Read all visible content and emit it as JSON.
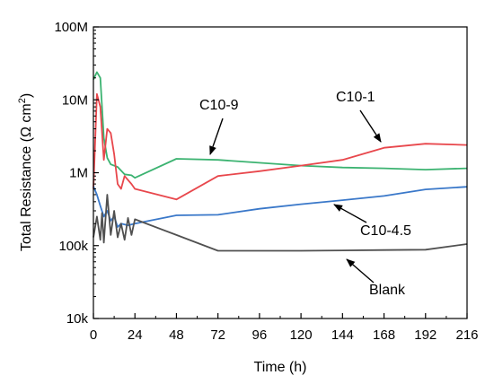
{
  "chart_data": {
    "type": "line",
    "x_axis": {
      "label": "Time (h)",
      "range": [
        0,
        216
      ],
      "ticks": [
        0,
        24,
        48,
        72,
        96,
        120,
        144,
        168,
        192,
        216
      ],
      "tick_labels": [
        "0",
        "24",
        "48",
        "72",
        "96",
        "120",
        "144",
        "168",
        "192",
        "216"
      ]
    },
    "y_axis": {
      "label": "Total Resistance (Ω cm²)",
      "label_main": "Total Resistance (Ω cm",
      "label_sup": "2",
      "label_end": ")",
      "scale": "log",
      "range": [
        10000,
        100000000
      ],
      "ticks": [
        10000,
        100000,
        1000000,
        10000000,
        100000000
      ],
      "tick_labels": [
        "10k",
        "100k",
        "1M",
        "10M",
        "100M"
      ]
    },
    "grid": false,
    "legend": "none (inline annotations with arrows)",
    "series": [
      {
        "name": "C10-9",
        "color": "#3cb371",
        "points": [
          [
            0,
            19000000
          ],
          [
            2,
            24000000
          ],
          [
            4,
            20000000
          ],
          [
            6,
            3000000
          ],
          [
            8,
            1600000
          ],
          [
            10,
            1300000
          ],
          [
            14,
            1200000
          ],
          [
            18,
            950000
          ],
          [
            22,
            920000
          ],
          [
            24,
            850000
          ],
          [
            48,
            1550000
          ],
          [
            72,
            1500000
          ],
          [
            120,
            1250000
          ],
          [
            144,
            1180000
          ],
          [
            168,
            1150000
          ],
          [
            192,
            1100000
          ],
          [
            216,
            1150000
          ]
        ]
      },
      {
        "name": "C10-1",
        "color": "#e8474c",
        "points": [
          [
            0,
            600000
          ],
          [
            2,
            12000000
          ],
          [
            4,
            8000000
          ],
          [
            6,
            1500000
          ],
          [
            8,
            4000000
          ],
          [
            10,
            3500000
          ],
          [
            12,
            1800000
          ],
          [
            14,
            700000
          ],
          [
            16,
            600000
          ],
          [
            18,
            900000
          ],
          [
            22,
            700000
          ],
          [
            24,
            600000
          ],
          [
            48,
            430000
          ],
          [
            72,
            900000
          ],
          [
            96,
            1050000
          ],
          [
            120,
            1250000
          ],
          [
            144,
            1500000
          ],
          [
            168,
            2200000
          ],
          [
            192,
            2500000
          ],
          [
            216,
            2400000
          ]
        ]
      },
      {
        "name": "C10-4.5",
        "color": "#3a78c9",
        "points": [
          [
            0,
            650000
          ],
          [
            2,
            500000
          ],
          [
            4,
            350000
          ],
          [
            6,
            250000
          ],
          [
            8,
            300000
          ],
          [
            10,
            220000
          ],
          [
            12,
            250000
          ],
          [
            14,
            180000
          ],
          [
            16,
            200000
          ],
          [
            20,
            190000
          ],
          [
            24,
            200000
          ],
          [
            48,
            260000
          ],
          [
            72,
            265000
          ],
          [
            96,
            320000
          ],
          [
            120,
            370000
          ],
          [
            144,
            420000
          ],
          [
            168,
            480000
          ],
          [
            192,
            590000
          ],
          [
            216,
            640000
          ]
        ]
      },
      {
        "name": "Blank",
        "color": "#505050",
        "points": [
          [
            0,
            130000
          ],
          [
            2,
            250000
          ],
          [
            4,
            120000
          ],
          [
            5,
            280000
          ],
          [
            6,
            110000
          ],
          [
            8,
            500000
          ],
          [
            10,
            140000
          ],
          [
            12,
            300000
          ],
          [
            14,
            130000
          ],
          [
            16,
            200000
          ],
          [
            18,
            120000
          ],
          [
            20,
            240000
          ],
          [
            22,
            140000
          ],
          [
            24,
            230000
          ],
          [
            48,
            140000
          ],
          [
            72,
            85000
          ],
          [
            120,
            85000
          ],
          [
            168,
            87000
          ],
          [
            192,
            88000
          ],
          [
            216,
            105000
          ]
        ]
      }
    ],
    "annotations": [
      {
        "text": "C10-9",
        "series": "C10-9"
      },
      {
        "text": "C10-1",
        "series": "C10-1"
      },
      {
        "text": "C10-4.5",
        "series": "C10-4.5"
      },
      {
        "text": "Blank",
        "series": "Blank"
      }
    ]
  }
}
